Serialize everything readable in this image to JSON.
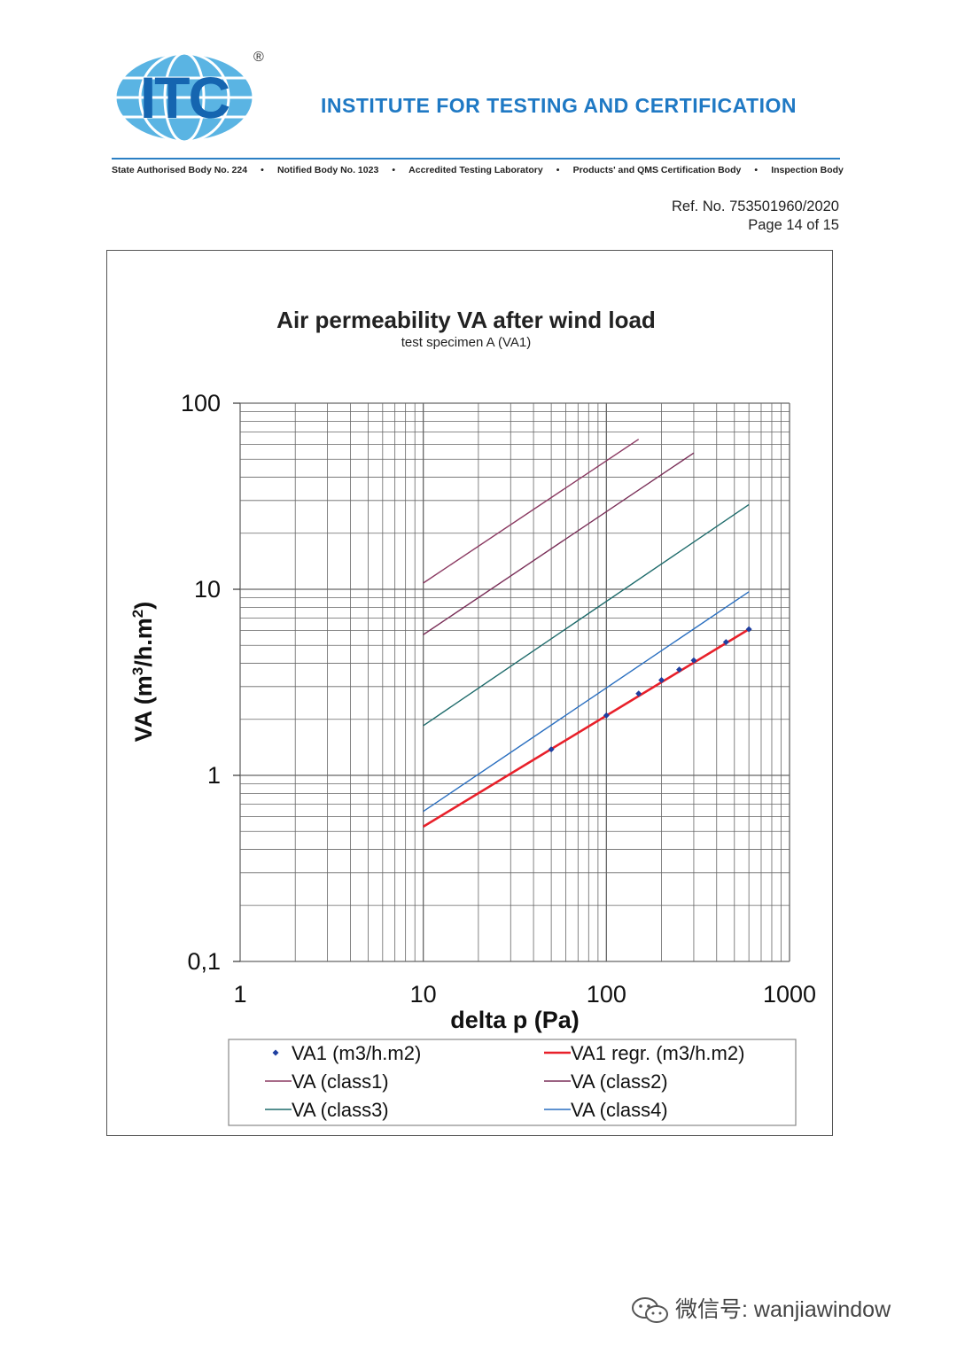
{
  "header": {
    "logo_text": "ITC",
    "registered_mark": "®",
    "institute_name": "INSTITUTE FOR TESTING AND CERTIFICATION",
    "accreditation": [
      "State Authorised Body No. 224",
      "•",
      "Notified Body No. 1023",
      "•",
      "Accredited Testing Laboratory",
      "•",
      "Products' and QMS Certification Body",
      "•",
      "Inspection Body"
    ],
    "ref_no": "Ref. No. 753501960/2020",
    "page": "Page 14 of 15"
  },
  "chart_data": {
    "type": "scatter",
    "title": "Air permeability VA after wind load",
    "subtitle": "test specimen A (VA1)",
    "xlabel": "delta p (Pa)",
    "ylabel_main": "VA (m",
    "ylabel_sup1": "3",
    "ylabel_mid": "/h.m",
    "ylabel_sup2": "2",
    "ylabel_end": ")",
    "x_scale": "log",
    "y_scale": "log",
    "xlim": [
      1,
      1000
    ],
    "ylim": [
      0.1,
      100
    ],
    "x_ticks": [
      "1",
      "10",
      "100",
      "1000"
    ],
    "y_ticks": [
      "0,1",
      "1",
      "10",
      "100"
    ],
    "grid": true,
    "legend_position": "bottom",
    "series": [
      {
        "name": "VA1 (m3/h.m2)",
        "kind": "points",
        "color": "#1f3fa0",
        "x": [
          50,
          100,
          150,
          200,
          250,
          300,
          450,
          600
        ],
        "y": [
          1.38,
          2.1,
          2.75,
          3.25,
          3.7,
          4.15,
          5.2,
          6.1
        ]
      },
      {
        "name": "VA1 regr. (m3/h.m2)",
        "kind": "line",
        "color": "#e8202a",
        "x": [
          10,
          600
        ],
        "y": [
          0.53,
          6.1
        ]
      },
      {
        "name": "VA (class1)",
        "kind": "line",
        "color": "#8b3a62",
        "x": [
          10,
          150
        ],
        "y": [
          10.8,
          64
        ]
      },
      {
        "name": "VA (class2)",
        "kind": "line",
        "color": "#7a2f58",
        "x": [
          10,
          300
        ],
        "y": [
          5.7,
          54
        ]
      },
      {
        "name": "VA (class3)",
        "kind": "line",
        "color": "#1e6b6b",
        "x": [
          10,
          600
        ],
        "y": [
          1.85,
          28.5
        ]
      },
      {
        "name": "VA (class4)",
        "kind": "line",
        "color": "#2a6fc0",
        "x": [
          10,
          600
        ],
        "y": [
          0.64,
          9.7
        ]
      }
    ],
    "legend_order": [
      0,
      1,
      2,
      3,
      4,
      5
    ]
  },
  "watermark": {
    "text": "微信号: wanjiawindow"
  }
}
